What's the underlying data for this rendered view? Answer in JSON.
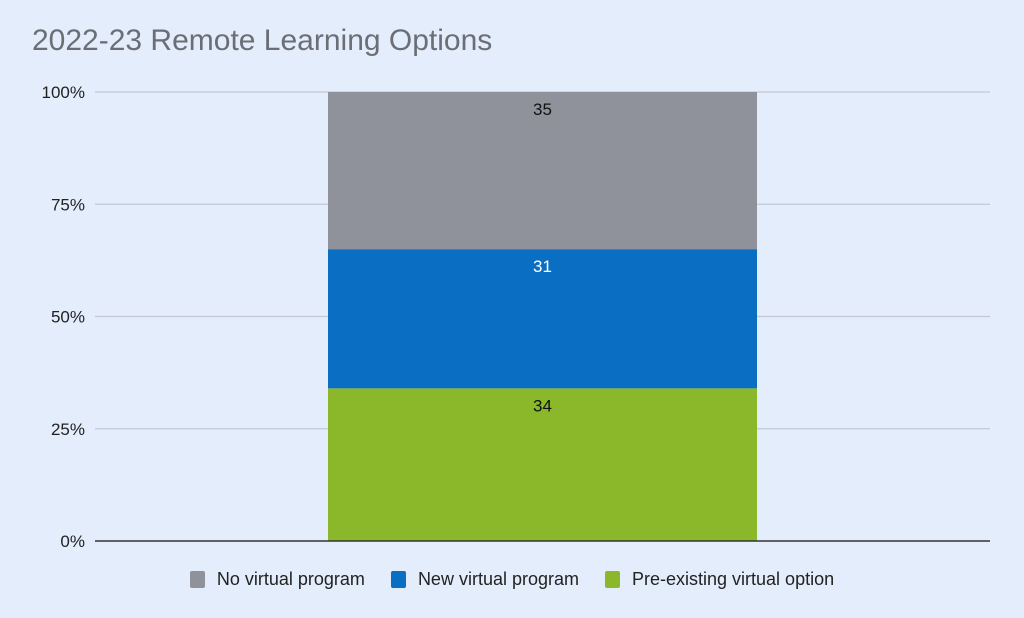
{
  "chart_data": {
    "type": "bar",
    "stacked": true,
    "percent_stacked": true,
    "title": "2022-23 Remote Learning Options",
    "categories": [
      ""
    ],
    "series": [
      {
        "name": "Pre-existing virtual option",
        "values": [
          34
        ],
        "color": "#8ab82a",
        "label_color": "#111111"
      },
      {
        "name": "New virtual program",
        "values": [
          31
        ],
        "color": "#0a6fc2",
        "label_color": "#ffffff"
      },
      {
        "name": "No virtual program",
        "values": [
          35
        ],
        "color": "#8f929b",
        "label_color": "#111111"
      }
    ],
    "legend_order": [
      2,
      1,
      0
    ],
    "ylim": [
      0,
      100
    ],
    "yticks": [
      "0%",
      "25%",
      "50%",
      "75%",
      "100%"
    ],
    "grid": true,
    "legend_position": "bottom",
    "xlabel": "",
    "ylabel": ""
  }
}
